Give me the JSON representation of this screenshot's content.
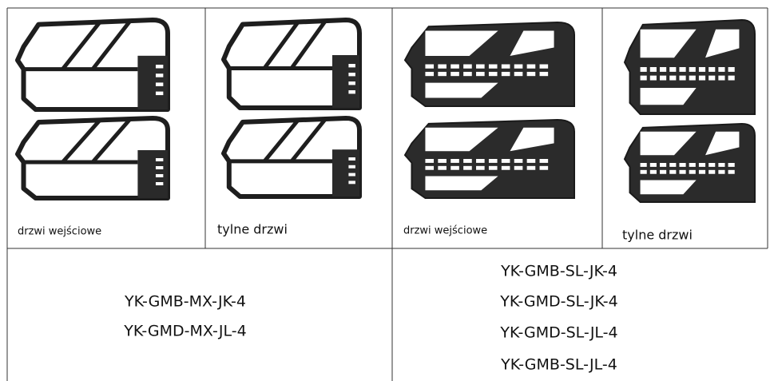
{
  "table": {
    "captions": [
      "drzwi wejściowe",
      "tylne drzwi",
      "drzwi wejściowe",
      "tylne drzwi"
    ],
    "models": [
      [
        "YK-GMB-MX-JK-4",
        "YK-GMD-MX-JL-4"
      ],
      [
        "YK-GMB-SL-JK-4",
        "YK-GMD-SL-JK-4",
        "YK-GMD-SL-JL-4",
        "YK-GMB-SL-JL-4"
      ]
    ]
  }
}
